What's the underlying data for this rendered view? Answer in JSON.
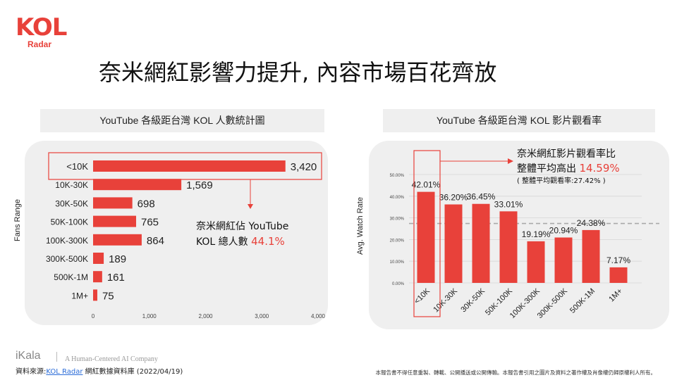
{
  "logo": {
    "mark": "KOL",
    "sub": "Radar"
  },
  "page_title": "奈米網紅影響力提升, 內容市場百花齊放",
  "left_panel": {
    "header": "YouTube 各級距台灣 KOL 人數統計圖",
    "y_axis_label": "Fans Range",
    "annotation_line1": "奈米網紅佔 YouTube",
    "annotation_line2_prefix": "KOL 總人數 ",
    "annotation_highlight": "44.1%"
  },
  "right_panel": {
    "header": "YouTube 各級距台灣 KOL 影片觀看率",
    "y_axis_label": "Avg. Watch Rate",
    "annotation_line1": "奈米網紅影片觀看率比",
    "annotation_line2_prefix": "整體平均高出 ",
    "annotation_highlight": "14.59%",
    "annotation_line3": "( 整體平均觀看率:27.42% )"
  },
  "chart_data": [
    {
      "type": "bar",
      "orientation": "horizontal",
      "categories": [
        "<10K",
        "10K-30K",
        "30K-50K",
        "50K-100K",
        "100K-300K",
        "300K-500K",
        "500K-1M",
        "1M+"
      ],
      "values": [
        3420,
        1569,
        698,
        765,
        864,
        189,
        161,
        75
      ],
      "data_labels": [
        "3,420",
        "1,569",
        "698",
        "765",
        "864",
        "189",
        "161",
        "75"
      ],
      "xlim": [
        0,
        4000
      ],
      "x_ticks": [
        "0",
        "1,000",
        "2,000",
        "3,000",
        "4,000"
      ],
      "ylabel": "Fans Range",
      "bar_color": "#e8413a",
      "highlight_category": "<10K"
    },
    {
      "type": "bar",
      "orientation": "vertical",
      "categories": [
        "<10K",
        "10K-30K",
        "30K-50K",
        "50K-100K",
        "100K-300K",
        "300K-500K",
        "500K-1M",
        "1M+"
      ],
      "values": [
        42.01,
        36.2,
        36.45,
        33.01,
        19.19,
        20.94,
        24.38,
        7.17
      ],
      "data_labels": [
        "42.01%",
        "36.20%",
        "36.45%",
        "33.01%",
        "19.19%",
        "20.94%",
        "24.38%",
        "7.17%"
      ],
      "ylim": [
        0,
        50
      ],
      "y_ticks": [
        "0.00%",
        "10.00%",
        "20.00%",
        "30.00%",
        "40.00%",
        "50.00%"
      ],
      "ylabel": "Avg. Watch Rate",
      "reference_line": 27.42,
      "bar_color": "#e8413a",
      "highlight_category": "<10K"
    }
  ],
  "footer": {
    "brand": "iKala",
    "tagline": "A Human-Centered AI Company",
    "source_prefix": "資料來源:",
    "source_link": "KOL Radar",
    "source_suffix": " 網紅數據資料庫 (2022/04/19)",
    "note": "本報告書不得任意重製、轉載、公開播送或公開傳輸。本報告書引用之圖片及資料之著作權及肖像權仍歸原權利人所有。"
  },
  "colors": {
    "accent": "#e8413a",
    "panel_bg": "#efefef",
    "link": "#2b6cd8"
  }
}
